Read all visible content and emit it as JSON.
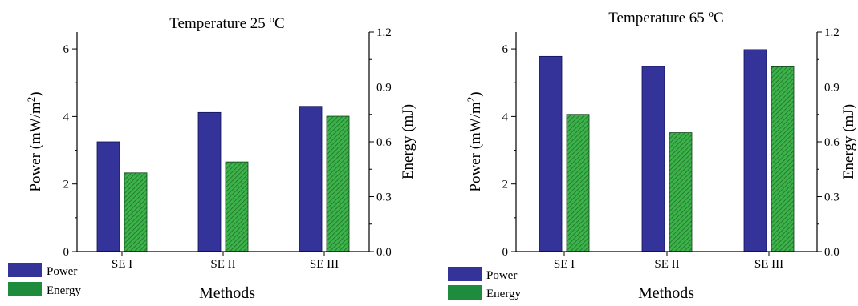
{
  "colors": {
    "power": "#33339a",
    "power_edge": "#111155",
    "energy": "#3cb24a",
    "energy_hatch": "#1f6e28",
    "energy_edge": "#0f3f16",
    "legend_power": "#33339a",
    "legend_energy": "#1e8c3c"
  },
  "legend": {
    "power": "Power",
    "energy": "Energy"
  },
  "chart_data": [
    {
      "type": "bar",
      "title_prefix": "Temperature 25 ",
      "title_sup": "o",
      "title_suffix": "C",
      "categories": [
        "SE I",
        "SE II",
        "SE III"
      ],
      "xlabel": "Methods",
      "ylabel_left": {
        "prefix": "Power (mW/m",
        "sup": "2",
        "suffix": ")"
      },
      "ylabel_right": "Energy (mJ)",
      "ylim_left": [
        0,
        6.5
      ],
      "ylim_right": [
        0,
        1.2
      ],
      "left_ticks": [
        "0",
        "2",
        "4",
        "6"
      ],
      "right_ticks": [
        "0.0",
        "0.3",
        "0.6",
        "0.9",
        "1.2"
      ],
      "grid": false,
      "legend_position": "bottom-left",
      "series": [
        {
          "name": "Power",
          "axis": "left",
          "values": [
            3.25,
            4.12,
            4.3
          ]
        },
        {
          "name": "Energy",
          "axis": "right",
          "values": [
            0.43,
            0.49,
            0.74
          ]
        }
      ]
    },
    {
      "type": "bar",
      "title_prefix": "Temperature 65 ",
      "title_sup": "o",
      "title_suffix": "C",
      "categories": [
        "SE I",
        "SE II",
        "SE III"
      ],
      "xlabel": "Methods",
      "ylabel_left": {
        "prefix": "Power (mW/m",
        "sup": "2",
        "suffix": ")"
      },
      "ylabel_right": "Energy (mJ)",
      "ylim_left": [
        0,
        6.5
      ],
      "ylim_right": [
        0,
        1.2
      ],
      "left_ticks": [
        "0",
        "2",
        "4",
        "6"
      ],
      "right_ticks": [
        "0.0",
        "0.3",
        "0.6",
        "0.9",
        "1.2"
      ],
      "grid": false,
      "legend_position": "bottom-left",
      "series": [
        {
          "name": "Power",
          "axis": "left",
          "values": [
            5.78,
            5.48,
            5.98
          ]
        },
        {
          "name": "Energy",
          "axis": "right",
          "values": [
            0.75,
            0.65,
            1.01
          ]
        }
      ]
    }
  ]
}
